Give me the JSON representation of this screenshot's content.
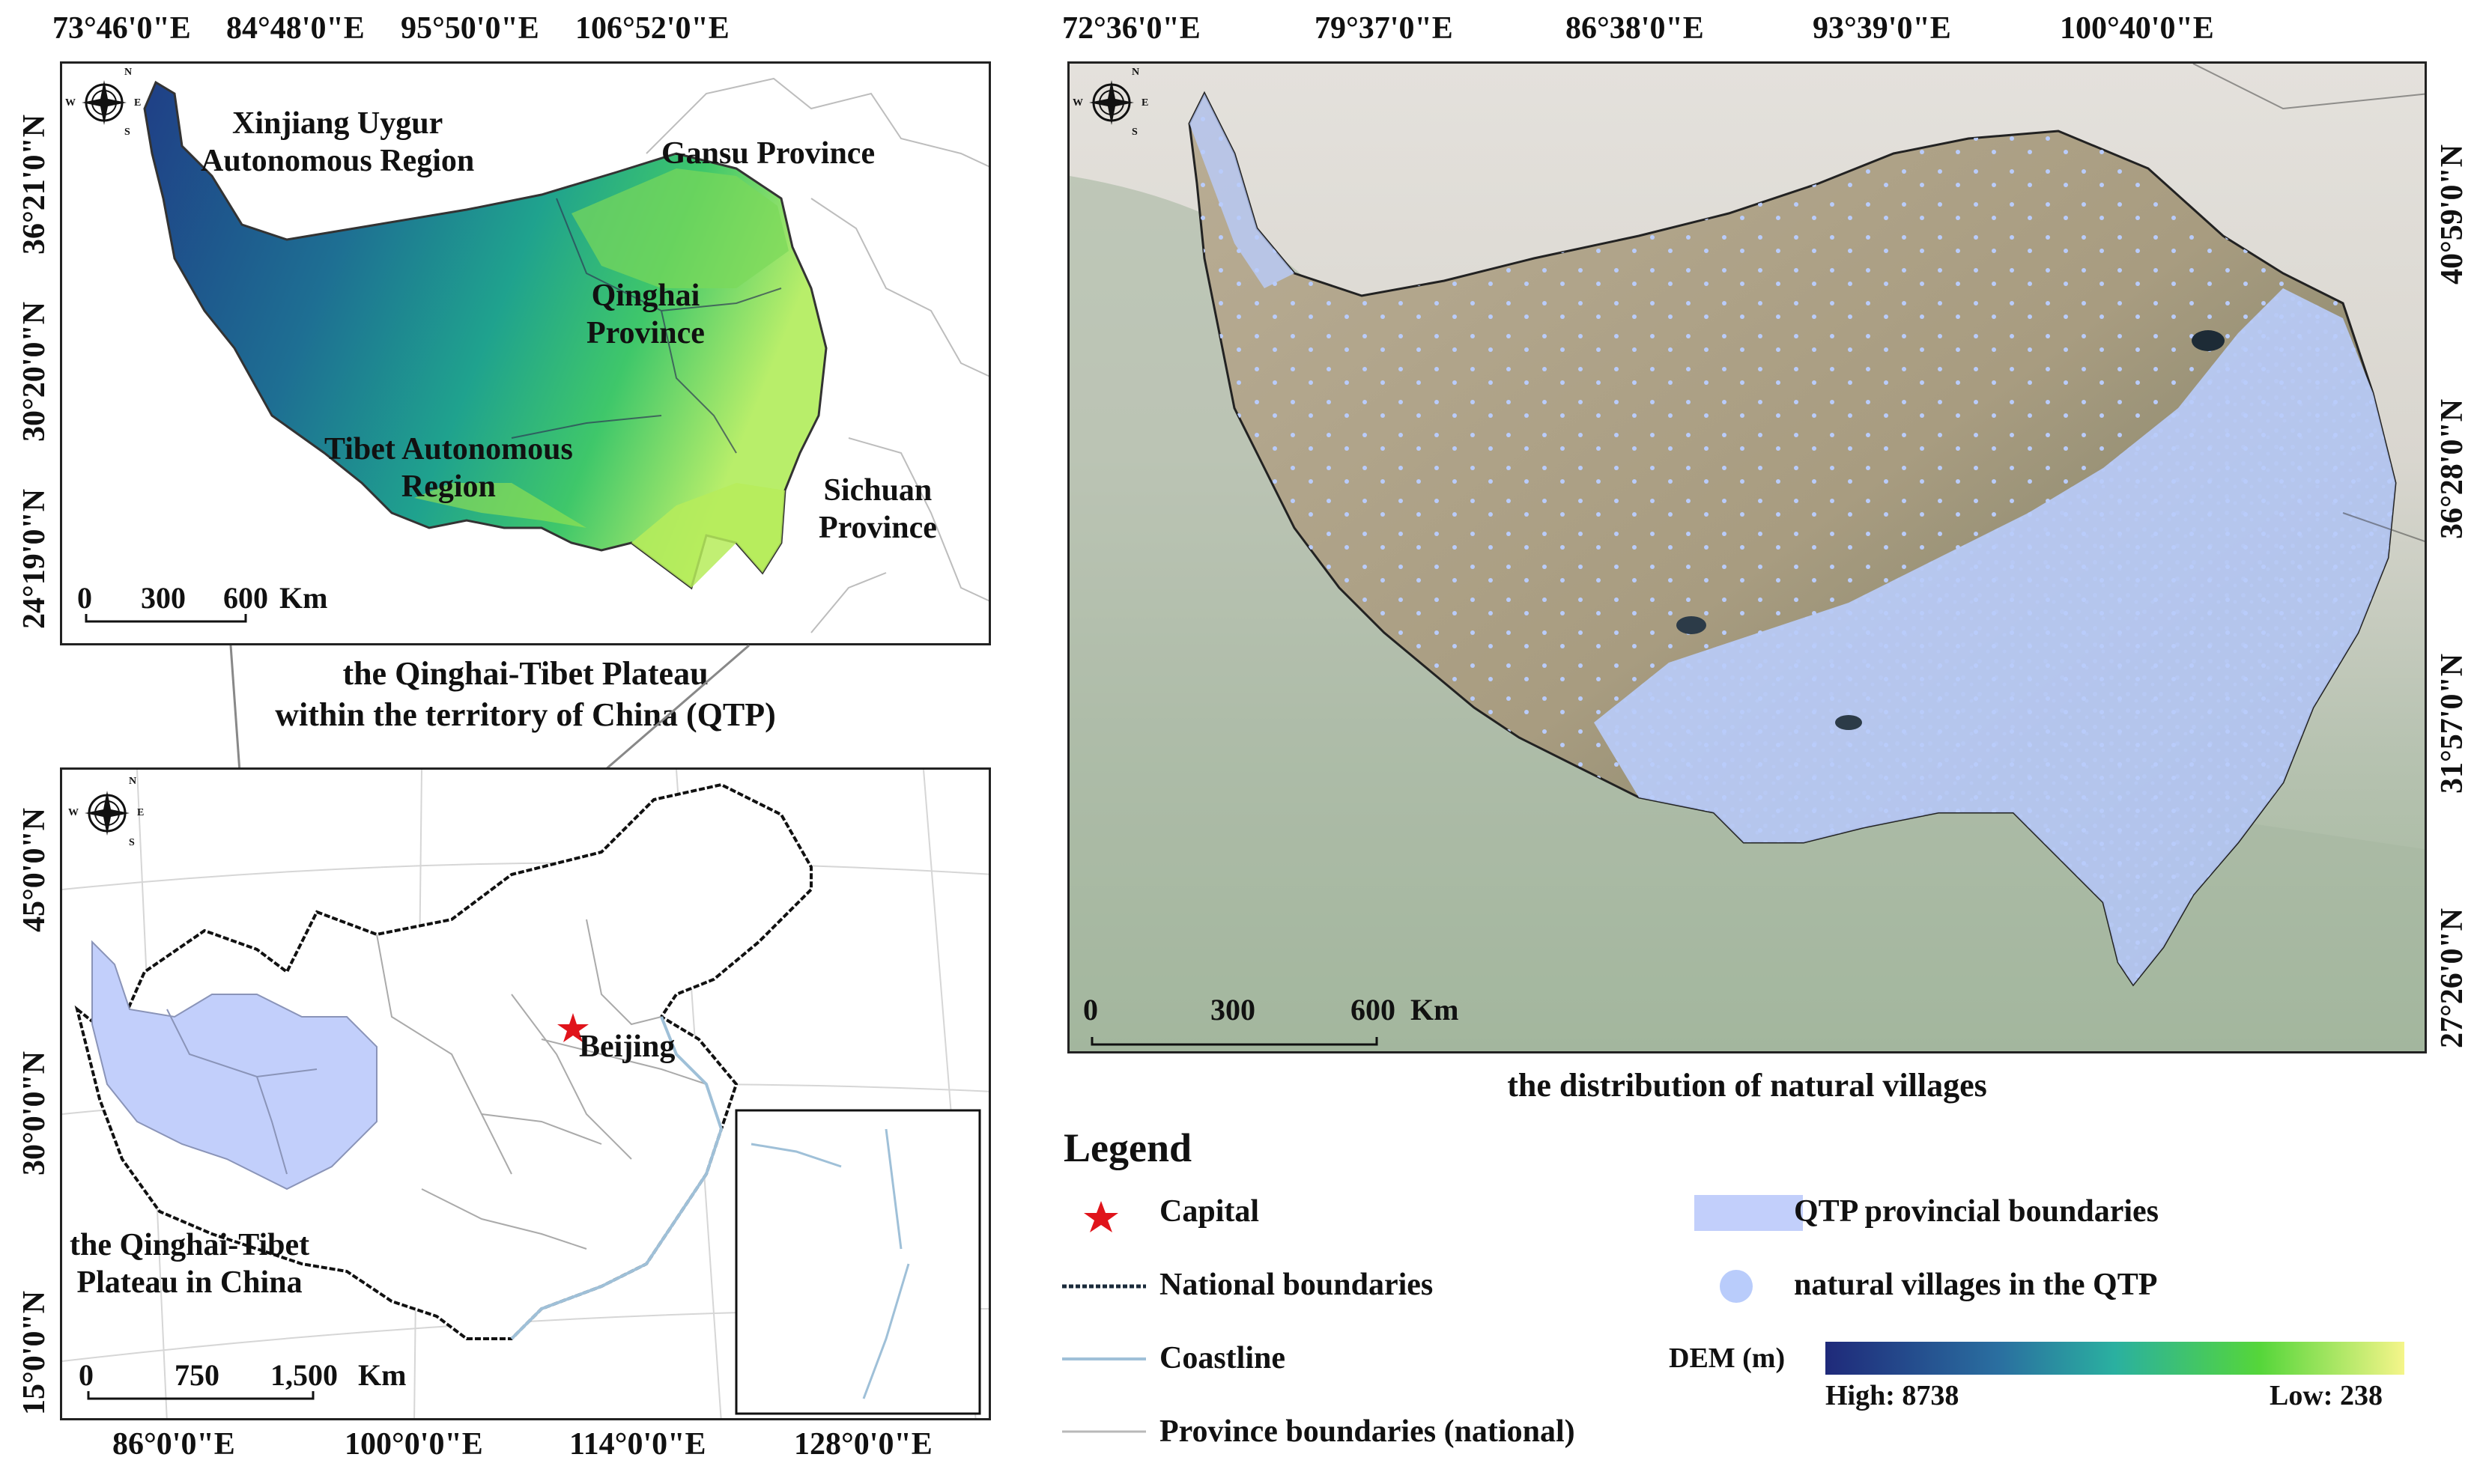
{
  "top_map": {
    "coords_top": [
      "73°46'0\"E",
      "84°48'0\"E",
      "95°50'0\"E",
      "106°52'0\"E"
    ],
    "coords_left": [
      "36°21'0\"N",
      "30°20'0\"N",
      "24°19'0\"N"
    ],
    "labels": {
      "xinjiang": "Xinjiang Uygur\nAutonomous Region",
      "gansu": "Gansu Province",
      "qinghai": "Qinghai\nProvince",
      "tibet": "Tibet Autonomous\nRegion",
      "sichuan": "Sichuan\nProvince"
    },
    "scale": [
      "0",
      "300",
      "600",
      "Km"
    ],
    "caption": "the Qinghai-Tibet Plateau\nwithin the territory of China (QTP)"
  },
  "bottom_map": {
    "coords_bottom": [
      "86°0'0\"E",
      "100°0'0\"E",
      "114°0'0\"E",
      "128°0'0\"E"
    ],
    "coords_left": [
      "45°0'0\"N",
      "30°0'0\"N",
      "15°0'0\"N"
    ],
    "labels": {
      "beijing": "Beijing",
      "qtp": "the Qinghai-Tibet\nPlateau in China"
    },
    "scale": [
      "0",
      "750",
      "1,500",
      "Km"
    ]
  },
  "right_map": {
    "coords_top": [
      "72°36'0\"E",
      "79°37'0\"E",
      "86°38'0\"E",
      "93°39'0\"E",
      "100°40'0\"E"
    ],
    "coords_right": [
      "40°59'0\"N",
      "36°28'0\"N",
      "31°57'0\"N",
      "27°26'0\"N"
    ],
    "scale": [
      "0",
      "300",
      "600",
      "Km"
    ],
    "caption": "the distribution of natural villages"
  },
  "compass": {
    "n": "N",
    "s": "S",
    "e": "E",
    "w": "W"
  },
  "legend": {
    "title": "Legend",
    "capital": "Capital",
    "national_boundaries": "National boundaries",
    "coastline": "Coastline",
    "province_boundaries": "Province boundaries (national)",
    "qtp_boundaries": "QTP provincial boundaries",
    "villages": "natural villages in the QTP",
    "dem_label": "DEM (m)",
    "dem_high": "High: 8738",
    "dem_low": "Low: 238"
  },
  "colors": {
    "qtp_fill": "#c2cffb",
    "village_dot": "#b9ccfb",
    "capital_star": "#e0141b",
    "dem_high": "#1f2a7a",
    "dem_mid": "#2ab0a0",
    "dem_green": "#55d63a",
    "dem_low": "#f5f58a"
  }
}
